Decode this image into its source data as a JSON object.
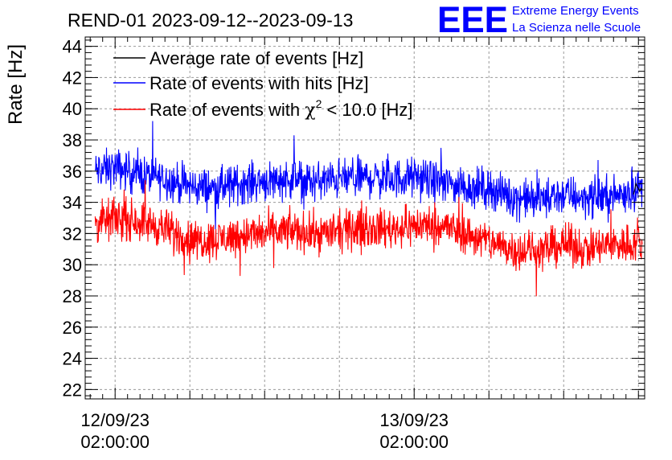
{
  "chart_data": {
    "type": "line",
    "title": "REND-01 2023-09-12--2023-09-13",
    "ylabel": "Rate [Hz]",
    "xlabel": "",
    "ylim": [
      21.4,
      44.6
    ],
    "y_ticks": [
      "22",
      "24",
      "26",
      "28",
      "30",
      "32",
      "34",
      "36",
      "38",
      "40",
      "42",
      "44"
    ],
    "x_tick_labels": [
      {
        "date": "12/09/23",
        "time": "02:00:00",
        "hour": 2
      },
      {
        "date": "13/09/23",
        "time": "02:00:00",
        "hour": 26
      }
    ],
    "x_hour_range": [
      -0.4,
      44.5
    ],
    "grid": true,
    "legend_position": "top-left",
    "series": [
      {
        "name": "Average rate of events [Hz]",
        "color": "#000000",
        "x_hours": [
          43.6,
          43.7,
          43.8,
          43.9,
          44.0,
          44.1,
          44.2,
          44.3
        ],
        "values": [
          34.5,
          34.8,
          35.2,
          35.0,
          34.9,
          34.7,
          34.9,
          34.8
        ]
      },
      {
        "name": "Rate of events with hits [Hz]",
        "color": "#0000ff",
        "x_hours": [
          0.4,
          2,
          4,
          6,
          8,
          10,
          12,
          14,
          16,
          18,
          20,
          22,
          24,
          26,
          28,
          30,
          32,
          34,
          36,
          38,
          40,
          42,
          44,
          44.3
        ],
        "values": [
          36.0,
          36.2,
          35.8,
          35.5,
          35.0,
          34.9,
          35.2,
          35.4,
          35.5,
          35.3,
          35.5,
          35.6,
          35.5,
          35.6,
          35.3,
          35.0,
          34.9,
          34.3,
          34.2,
          34.5,
          34.3,
          34.4,
          34.9,
          35.0
        ],
        "spread": 1.0
      },
      {
        "name": "Rate of events with χ² < 10.0 [Hz]",
        "label_pre": "Rate of events with ",
        "label_chi": "χ",
        "label_sup": "2",
        "label_post": " < 10.0 [Hz]",
        "color": "#ff0000",
        "x_hours": [
          0.4,
          2,
          4,
          6,
          8,
          10,
          12,
          14,
          16,
          18,
          20,
          22,
          24,
          26,
          28,
          30,
          32,
          34,
          36,
          38,
          40,
          42,
          44,
          44.3
        ],
        "values": [
          32.6,
          33.0,
          32.8,
          32.3,
          31.6,
          31.6,
          31.9,
          32.0,
          32.2,
          32.0,
          32.1,
          32.4,
          32.3,
          32.5,
          32.6,
          32.0,
          31.5,
          31.0,
          30.9,
          31.3,
          31.0,
          31.3,
          31.4,
          31.1
        ],
        "spread": 1.0
      }
    ]
  },
  "logo": {
    "letters": "EEE",
    "line1": "Extreme Energy Events",
    "line2": "La Scienza nelle Scuole",
    "color": "#0000ff"
  }
}
